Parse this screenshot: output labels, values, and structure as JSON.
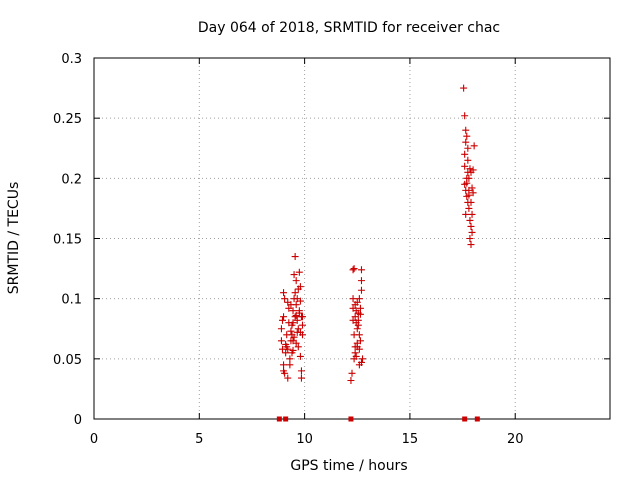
{
  "chart_data": {
    "type": "scatter",
    "title": "Day 064 of 2018, SRMTID for receiver chac",
    "xlabel": "GPS time / hours",
    "ylabel": "SRMTID / TECUs",
    "xlim": [
      0,
      24.5
    ],
    "ylim": [
      0,
      0.3
    ],
    "xticks": [
      0,
      5,
      10,
      15,
      20
    ],
    "xtick_labels": [
      "0",
      "5",
      "10",
      "15",
      "20"
    ],
    "yticks": [
      0,
      0.05,
      0.1,
      0.15,
      0.2,
      0.25,
      0.3
    ],
    "ytick_labels": [
      "0",
      "0.05",
      "0.1",
      "0.15",
      "0.2",
      "0.25",
      "0.3"
    ],
    "grid": true,
    "marker": "+",
    "color": "#cc0000",
    "zero_markers_x": [
      8.8,
      9.1,
      12.2,
      17.6,
      18.2
    ],
    "series": [
      {
        "name": "SRMTID",
        "points": [
          [
            8.9,
            0.065
          ],
          [
            8.9,
            0.075
          ],
          [
            8.95,
            0.082
          ],
          [
            8.95,
            0.058
          ],
          [
            9.0,
            0.045
          ],
          [
            9.0,
            0.04
          ],
          [
            9.05,
            0.038
          ],
          [
            9.05,
            0.1
          ],
          [
            9.0,
            0.105
          ],
          [
            9.1,
            0.062
          ],
          [
            9.1,
            0.055
          ],
          [
            9.15,
            0.06
          ],
          [
            9.15,
            0.07
          ],
          [
            9.2,
            0.058
          ],
          [
            9.2,
            0.034
          ],
          [
            9.25,
            0.092
          ],
          [
            9.25,
            0.08
          ],
          [
            9.3,
            0.05
          ],
          [
            9.3,
            0.045
          ],
          [
            9.35,
            0.095
          ],
          [
            9.35,
            0.065
          ],
          [
            9.4,
            0.07
          ],
          [
            9.4,
            0.078
          ],
          [
            9.45,
            0.09
          ],
          [
            9.45,
            0.065
          ],
          [
            9.5,
            0.12
          ],
          [
            9.5,
            0.1
          ],
          [
            9.55,
            0.135
          ],
          [
            9.55,
            0.105
          ],
          [
            9.6,
            0.095
          ],
          [
            9.6,
            0.086
          ],
          [
            9.6,
            0.063
          ],
          [
            9.65,
            0.1
          ],
          [
            9.65,
            0.082
          ],
          [
            9.7,
            0.075
          ],
          [
            9.7,
            0.06
          ],
          [
            9.75,
            0.088
          ],
          [
            9.75,
            0.122
          ],
          [
            9.8,
            0.11
          ],
          [
            9.8,
            0.098
          ],
          [
            9.8,
            0.052
          ],
          [
            9.85,
            0.04
          ],
          [
            9.85,
            0.034
          ],
          [
            9.9,
            0.078
          ],
          [
            9.9,
            0.07
          ],
          [
            9.5,
            0.068
          ],
          [
            9.45,
            0.08
          ],
          [
            9.55,
            0.085
          ],
          [
            9.65,
            0.072
          ],
          [
            9.75,
            0.09
          ],
          [
            9.9,
            0.085
          ],
          [
            9.35,
            0.073
          ],
          [
            9.6,
            0.115
          ],
          [
            9.7,
            0.108
          ],
          [
            9.8,
            0.072
          ],
          [
            9.85,
            0.085
          ],
          [
            9.4,
            0.055
          ],
          [
            9.0,
            0.085
          ],
          [
            9.2,
            0.097
          ],
          [
            9.45,
            0.057
          ],
          [
            12.2,
            0.032
          ],
          [
            12.25,
            0.038
          ],
          [
            12.3,
            0.1
          ],
          [
            12.3,
            0.092
          ],
          [
            12.3,
            0.124
          ],
          [
            12.35,
            0.125
          ],
          [
            12.35,
            0.05
          ],
          [
            12.4,
            0.095
          ],
          [
            12.4,
            0.06
          ],
          [
            12.4,
            0.055
          ],
          [
            12.45,
            0.08
          ],
          [
            12.45,
            0.09
          ],
          [
            12.5,
            0.063
          ],
          [
            12.5,
            0.06
          ],
          [
            12.5,
            0.075
          ],
          [
            12.55,
            0.082
          ],
          [
            12.55,
            0.088
          ],
          [
            12.6,
            0.07
          ],
          [
            12.6,
            0.1
          ],
          [
            12.6,
            0.045
          ],
          [
            12.65,
            0.092
          ],
          [
            12.65,
            0.087
          ],
          [
            12.7,
            0.124
          ],
          [
            12.7,
            0.115
          ],
          [
            12.7,
            0.107
          ],
          [
            12.75,
            0.05
          ],
          [
            12.35,
            0.07
          ],
          [
            12.45,
            0.052
          ],
          [
            12.55,
            0.078
          ],
          [
            12.65,
            0.065
          ],
          [
            12.3,
            0.082
          ],
          [
            12.4,
            0.085
          ],
          [
            12.5,
            0.097
          ],
          [
            12.6,
            0.058
          ],
          [
            12.7,
            0.047
          ],
          [
            17.55,
            0.275
          ],
          [
            17.6,
            0.252
          ],
          [
            17.65,
            0.24
          ],
          [
            17.65,
            0.23
          ],
          [
            17.6,
            0.22
          ],
          [
            17.7,
            0.235
          ],
          [
            17.75,
            0.215
          ],
          [
            17.75,
            0.205
          ],
          [
            17.8,
            0.2
          ],
          [
            17.6,
            0.195
          ],
          [
            17.65,
            0.19
          ],
          [
            17.7,
            0.185
          ],
          [
            17.75,
            0.18
          ],
          [
            17.8,
            0.175
          ],
          [
            17.85,
            0.165
          ],
          [
            17.9,
            0.16
          ],
          [
            17.95,
            0.155
          ],
          [
            17.85,
            0.15
          ],
          [
            17.9,
            0.145
          ],
          [
            17.6,
            0.21
          ],
          [
            17.7,
            0.2
          ],
          [
            17.8,
            0.19
          ],
          [
            17.9,
            0.18
          ],
          [
            18.0,
            0.207
          ],
          [
            18.05,
            0.227
          ],
          [
            17.75,
            0.225
          ],
          [
            17.85,
            0.208
          ],
          [
            17.95,
            0.192
          ],
          [
            17.65,
            0.17
          ],
          [
            17.95,
            0.17
          ],
          [
            17.7,
            0.196
          ],
          [
            17.8,
            0.186
          ],
          [
            17.9,
            0.205
          ],
          [
            18.0,
            0.188
          ]
        ]
      }
    ]
  }
}
